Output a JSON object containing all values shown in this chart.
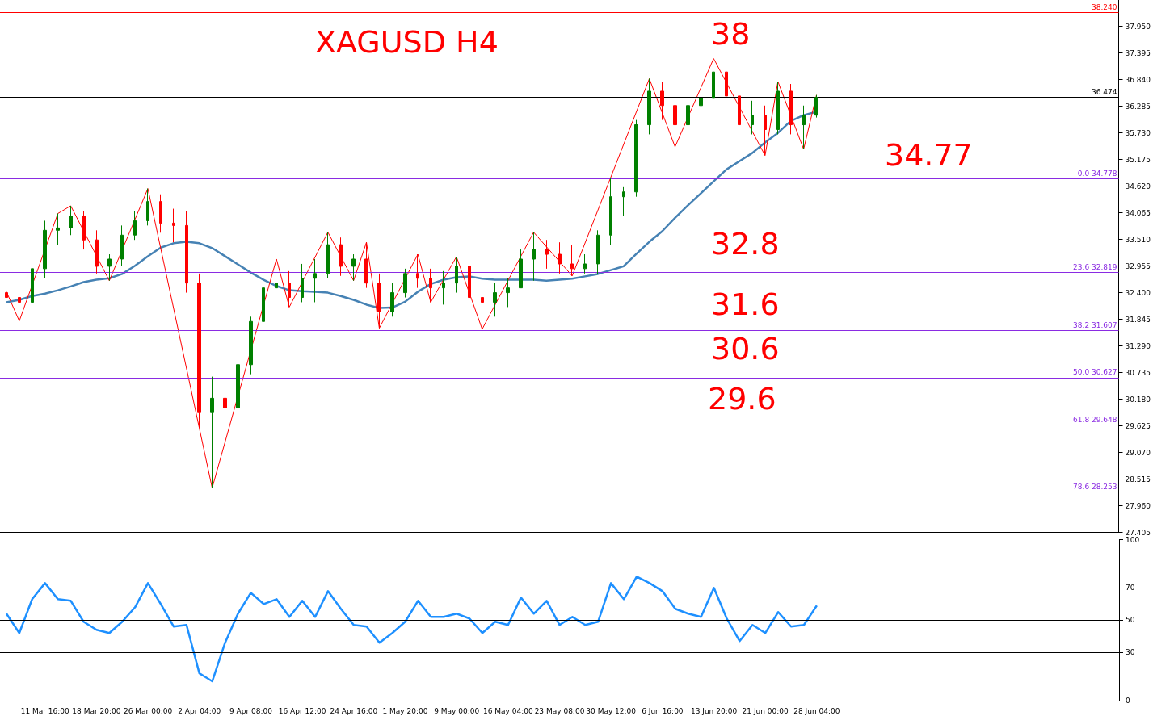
{
  "chart_data": [
    {
      "type": "candlestick",
      "title": "XAGUSD H4",
      "tick_labels": "y",
      "categories": [
        null,
        null,
        null,
        null,
        null,
        null,
        null,
        null,
        null,
        null,
        null,
        null,
        null,
        null,
        null,
        null,
        null,
        null,
        null,
        null,
        null,
        null,
        null,
        null,
        null,
        null,
        null,
        null,
        null,
        null,
        null,
        null,
        null,
        null,
        null,
        null,
        null,
        null,
        null,
        null,
        null,
        null,
        null,
        null,
        null,
        null,
        null,
        null,
        null,
        null,
        null,
        null,
        null,
        null,
        null,
        null,
        null,
        null,
        null,
        null,
        null,
        null,
        null,
        null,
        null,
        null,
        null,
        null,
        null,
        null,
        null,
        null,
        null,
        null,
        null,
        null,
        null,
        null,
        null,
        null,
        null,
        null,
        null,
        null,
        null,
        null,
        null
      ],
      "ohlc": [
        [
          32.4,
          32.7,
          32.1,
          32.3
        ],
        [
          32.3,
          32.55,
          31.81,
          32.2
        ],
        [
          32.2,
          33.05,
          32.05,
          32.9
        ],
        [
          32.9,
          33.9,
          32.7,
          33.7
        ],
        [
          33.7,
          34.05,
          33.4,
          33.75
        ],
        [
          33.75,
          34.21,
          33.6,
          34.0
        ],
        [
          34.0,
          34.1,
          33.3,
          33.5
        ],
        [
          33.5,
          33.7,
          32.8,
          32.95
        ],
        [
          32.95,
          33.2,
          32.65,
          33.1
        ],
        [
          33.1,
          33.8,
          32.95,
          33.6
        ],
        [
          33.6,
          34.1,
          33.5,
          33.9
        ],
        [
          33.9,
          34.57,
          33.8,
          34.3
        ],
        [
          34.3,
          34.45,
          33.65,
          33.85
        ],
        [
          33.85,
          34.15,
          33.45,
          33.8
        ],
        [
          33.8,
          34.1,
          32.4,
          32.6
        ],
        [
          32.6,
          32.8,
          29.6,
          29.9
        ],
        [
          29.9,
          30.65,
          28.33,
          30.2
        ],
        [
          30.2,
          30.4,
          29.3,
          30.0
        ],
        [
          30.0,
          31.0,
          29.8,
          30.9
        ],
        [
          30.9,
          31.9,
          30.7,
          31.8
        ],
        [
          31.8,
          32.7,
          31.7,
          32.5
        ],
        [
          32.5,
          33.1,
          32.2,
          32.6
        ],
        [
          32.6,
          32.85,
          32.1,
          32.3
        ],
        [
          32.3,
          33.0,
          32.2,
          32.7
        ],
        [
          32.7,
          33.1,
          32.2,
          32.8
        ],
        [
          32.8,
          33.66,
          32.7,
          33.4
        ],
        [
          33.4,
          33.55,
          32.75,
          32.95
        ],
        [
          32.95,
          33.2,
          32.65,
          33.1
        ],
        [
          33.1,
          33.45,
          32.5,
          32.6
        ],
        [
          32.6,
          32.8,
          31.66,
          32.0
        ],
        [
          32.0,
          32.6,
          31.9,
          32.4
        ],
        [
          32.4,
          32.9,
          32.3,
          32.8
        ],
        [
          32.8,
          33.2,
          32.5,
          32.7
        ],
        [
          32.7,
          32.9,
          32.2,
          32.5
        ],
        [
          32.5,
          32.85,
          32.15,
          32.6
        ],
        [
          32.6,
          33.15,
          32.4,
          32.95
        ],
        [
          32.95,
          33.0,
          32.1,
          32.3
        ],
        [
          32.3,
          32.5,
          31.64,
          32.2
        ],
        [
          32.2,
          32.6,
          31.9,
          32.4
        ],
        [
          32.4,
          32.7,
          32.1,
          32.5
        ],
        [
          32.5,
          33.3,
          32.5,
          33.1
        ],
        [
          33.1,
          33.66,
          32.65,
          33.3
        ],
        [
          33.3,
          33.5,
          32.9,
          33.2
        ],
        [
          33.2,
          33.45,
          32.8,
          33.0
        ],
        [
          33.0,
          33.4,
          32.75,
          32.9
        ],
        [
          32.9,
          33.2,
          32.8,
          33.0
        ],
        [
          33.0,
          33.7,
          32.78,
          33.6
        ],
        [
          33.6,
          34.8,
          33.4,
          34.4
        ],
        [
          34.4,
          34.6,
          34.0,
          34.5
        ],
        [
          34.5,
          36.0,
          34.4,
          35.9
        ],
        [
          35.9,
          36.86,
          35.7,
          36.6
        ],
        [
          36.6,
          36.8,
          36.0,
          36.3
        ],
        [
          36.3,
          36.5,
          35.44,
          35.9
        ],
        [
          35.9,
          36.5,
          35.8,
          36.3
        ],
        [
          36.3,
          36.6,
          36.0,
          36.45
        ],
        [
          36.45,
          37.28,
          36.3,
          37.0
        ],
        [
          37.0,
          37.2,
          36.3,
          36.5
        ],
        [
          36.5,
          36.7,
          35.5,
          35.9
        ],
        [
          35.9,
          36.4,
          35.7,
          36.1
        ],
        [
          36.1,
          36.3,
          35.26,
          35.8
        ],
        [
          35.8,
          36.8,
          35.7,
          36.6
        ],
        [
          36.6,
          36.75,
          35.7,
          35.9
        ],
        [
          35.9,
          36.3,
          35.39,
          36.1
        ],
        [
          36.1,
          36.52,
          36.05,
          36.47
        ],
        null,
        null,
        null,
        null,
        null,
        null,
        null,
        null,
        null,
        null,
        null,
        null,
        null,
        null,
        null,
        null,
        null,
        null,
        null,
        null,
        null,
        null,
        null
      ],
      "colors": [
        "#ff0000",
        "#ff0000",
        "#008000",
        "#008000",
        "#008000",
        "#008000",
        "#ff0000",
        "#ff0000",
        "#008000",
        "#008000",
        "#008000",
        "#008000",
        "#ff0000",
        "#ff0000",
        "#ff0000",
        "#ff0000",
        "#008000",
        "#ff0000",
        "#008000",
        "#008000",
        "#008000",
        "#008000",
        "#ff0000",
        "#008000",
        "#008000",
        "#008000",
        "#ff0000",
        "#008000",
        "#ff0000",
        "#ff0000",
        "#008000",
        "#008000",
        "#ff0000",
        "#ff0000",
        "#008000",
        "#008000",
        "#ff0000",
        "#ff0000",
        "#008000",
        "#008000",
        "#008000",
        "#008000",
        "#ff0000",
        "#ff0000",
        "#ff0000",
        "#008000",
        "#008000",
        "#008000",
        "#008000",
        "#008000",
        "#008000",
        "#ff0000",
        "#ff0000",
        "#008000",
        "#008000",
        "#008000",
        "#ff0000",
        "#ff0000",
        "#008000",
        "#ff0000",
        "#008000",
        "#ff0000",
        "#008000",
        "#008000",
        null,
        null,
        null,
        null,
        null,
        null,
        null,
        null,
        null,
        null,
        null,
        null,
        null,
        null,
        null,
        null,
        null,
        null,
        null,
        null,
        null,
        null,
        null
      ],
      "series": [
        {
          "type": "line",
          "color": "#4682b4",
          "values": [
            32.2,
            32.25,
            32.33,
            32.38,
            32.45,
            32.53,
            32.62,
            32.67,
            32.7,
            32.79,
            32.96,
            33.16,
            33.34,
            33.43,
            33.46,
            33.43,
            33.33,
            33.16,
            32.99,
            32.82,
            32.67,
            32.54,
            32.45,
            32.43,
            32.42,
            32.4,
            32.33,
            32.25,
            32.15,
            32.08,
            32.09,
            32.21,
            32.42,
            32.58,
            32.67,
            32.72,
            32.74,
            32.69,
            32.67,
            32.67,
            32.67,
            32.67,
            32.65,
            32.67,
            32.69,
            32.74,
            32.79,
            32.87,
            32.95,
            33.21,
            33.46,
            33.68,
            33.96,
            34.22,
            34.47,
            34.72,
            34.97,
            35.14,
            35.31,
            35.53,
            35.73,
            35.98,
            36.1,
            36.17,
            null,
            null,
            null,
            null,
            null,
            null,
            null,
            null,
            null,
            null,
            null,
            null,
            null,
            null,
            null,
            null,
            null,
            null,
            null,
            null,
            null,
            null,
            null
          ]
        },
        {
          "type": "line",
          "color": "#ff0000",
          "values": [
            32.42,
            31.81,
            null,
            null,
            34.05,
            34.21,
            null,
            null,
            32.65,
            null,
            null,
            34.57,
            null,
            null,
            null,
            null,
            28.33,
            null,
            null,
            null,
            null,
            33.1,
            32.1,
            null,
            null,
            33.66,
            null,
            32.65,
            33.45,
            31.66,
            null,
            null,
            33.2,
            32.2,
            null,
            33.15,
            null,
            31.64,
            null,
            null,
            null,
            33.66,
            null,
            null,
            32.75,
            null,
            null,
            null,
            null,
            null,
            36.86,
            null,
            35.44,
            null,
            null,
            37.28,
            null,
            null,
            null,
            35.26,
            36.8,
            null,
            35.39,
            36.52,
            null,
            null,
            null,
            null,
            null,
            null,
            null,
            null,
            null,
            null,
            null,
            null,
            null,
            null,
            null,
            null,
            null,
            null,
            null,
            null,
            null,
            null,
            null
          ]
        }
      ],
      "ylim": [
        27.405,
        38.5
      ],
      "yticks": [
        {
          "value": 27.405,
          "label": "27.405"
        },
        {
          "value": 27.96,
          "label": "27.960"
        },
        {
          "value": 28.515,
          "label": "28.515"
        },
        {
          "value": 29.07,
          "label": "29.070"
        },
        {
          "value": 29.625,
          "label": "29.625"
        },
        {
          "value": 30.18,
          "label": "30.180"
        },
        {
          "value": 30.735,
          "label": "30.735"
        },
        {
          "value": 31.29,
          "label": "31.290"
        },
        {
          "value": 31.845,
          "label": "31.845"
        },
        {
          "value": 32.4,
          "label": "32.400"
        },
        {
          "value": 32.955,
          "label": "32.955"
        },
        {
          "value": 33.51,
          "label": "33.510"
        },
        {
          "value": 34.065,
          "label": "34.065"
        },
        {
          "value": 34.62,
          "label": "34.620"
        },
        {
          "value": 35.175,
          "label": "35.175"
        },
        {
          "value": 35.73,
          "label": "35.730"
        },
        {
          "value": 36.285,
          "label": "36.285"
        },
        {
          "value": 36.84,
          "label": "36.840"
        },
        {
          "value": 37.395,
          "label": "37.395"
        },
        {
          "value": 37.95,
          "label": "37.950"
        }
      ],
      "ref_lines": [
        {
          "axis": "y",
          "value": 38.24,
          "label": "38.240",
          "color": "#ff0000"
        },
        {
          "axis": "y",
          "value": 36.474,
          "label": "36.474",
          "color": "#000000"
        },
        {
          "axis": "y",
          "value": 34.778,
          "label": "0.0 34.778",
          "color": "#8a2be2"
        },
        {
          "axis": "y",
          "value": 32.819,
          "label": "23.6 32.819",
          "color": "#8a2be2"
        },
        {
          "axis": "y",
          "value": 31.607,
          "label": "38.2 31.607",
          "color": "#8a2be2"
        },
        {
          "axis": "y",
          "value": 30.627,
          "label": "50.0 30.627",
          "color": "#8a2be2"
        },
        {
          "axis": "y",
          "value": 29.648,
          "label": "61.8 29.648",
          "color": "#8a2be2"
        },
        {
          "axis": "y",
          "value": 28.253,
          "label": "78.6 28.253",
          "color": "#8a2be2"
        }
      ],
      "annotations": [
        "38",
        "34.77",
        "32.8",
        "31.6",
        "30.6",
        "29.6"
      ]
    },
    {
      "type": "line",
      "categories": [
        null,
        null,
        null,
        "11 Mar 16:00",
        null,
        null,
        null,
        "18 Mar 20:00",
        null,
        null,
        null,
        "26 Mar 00:00",
        null,
        null,
        null,
        "2 Apr 04:00",
        null,
        null,
        null,
        "9 Apr 08:00",
        null,
        null,
        null,
        "16 Apr 12:00",
        null,
        null,
        null,
        "24 Apr 16:00",
        null,
        null,
        null,
        "1 May 20:00",
        null,
        null,
        null,
        "9 May 00:00",
        null,
        null,
        null,
        "16 May 04:00",
        null,
        null,
        null,
        "23 May 08:00",
        null,
        null,
        null,
        "30 May 12:00",
        null,
        null,
        null,
        "6 Jun 16:00",
        null,
        null,
        null,
        "13 Jun 20:00",
        null,
        null,
        null,
        "21 Jun 00:00",
        null,
        null,
        null,
        "28 Jun 04:00",
        null,
        null,
        null,
        null,
        null,
        null,
        null,
        null,
        null,
        null,
        null,
        null,
        null,
        null,
        null,
        null,
        null,
        null,
        null,
        null,
        null,
        null,
        null
      ],
      "series": [
        {
          "color": "#1e90ff",
          "values": [
            54,
            42,
            63,
            73,
            63,
            62,
            49,
            44,
            42,
            49,
            58,
            73,
            60,
            46,
            47,
            17,
            12,
            36,
            54,
            67,
            60,
            63,
            52,
            62,
            52,
            68,
            57,
            47,
            46,
            36,
            42,
            49,
            62,
            52,
            52,
            54,
            51,
            42,
            49,
            47,
            64,
            54,
            62,
            47,
            52,
            47,
            49,
            73,
            63,
            77,
            73,
            68,
            57,
            54,
            52,
            70,
            51,
            37,
            47,
            42,
            55,
            46,
            47,
            59,
            null,
            null,
            null,
            null,
            null,
            null,
            null,
            null,
            null,
            null,
            null,
            null,
            null,
            null,
            null,
            null,
            null,
            null,
            null,
            null,
            null,
            null,
            null
          ]
        }
      ],
      "ylim": [
        0,
        100
      ],
      "yticks": [
        0,
        30,
        50,
        70,
        100
      ],
      "ref_lines": [
        {
          "axis": "y",
          "value": 30,
          "color": "#000000"
        },
        {
          "axis": "y",
          "value": 50,
          "color": "#000000"
        },
        {
          "axis": "y",
          "value": 70,
          "color": "#000000"
        }
      ]
    }
  ]
}
